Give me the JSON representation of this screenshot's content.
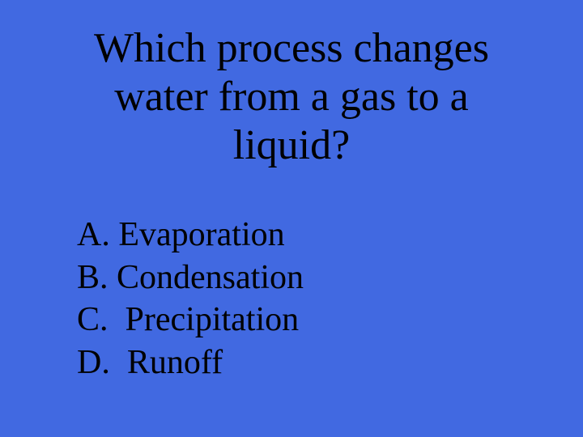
{
  "slide": {
    "background_color": "#4169e1",
    "text_color": "#000000",
    "font_family": "Times New Roman",
    "question": {
      "text": "Which process changes water from a gas to a liquid?",
      "font_size": 52,
      "align": "center"
    },
    "options": {
      "font_size": 42,
      "items": [
        {
          "label": "A.",
          "text": "Evaporation",
          "spacing": " "
        },
        {
          "label": "B.",
          "text": "Condensation",
          "spacing": " "
        },
        {
          "label": "C.",
          "text": "Precipitation",
          "spacing": "  "
        },
        {
          "label": "D.",
          "text": "Runoff",
          "spacing": "  "
        }
      ]
    }
  }
}
